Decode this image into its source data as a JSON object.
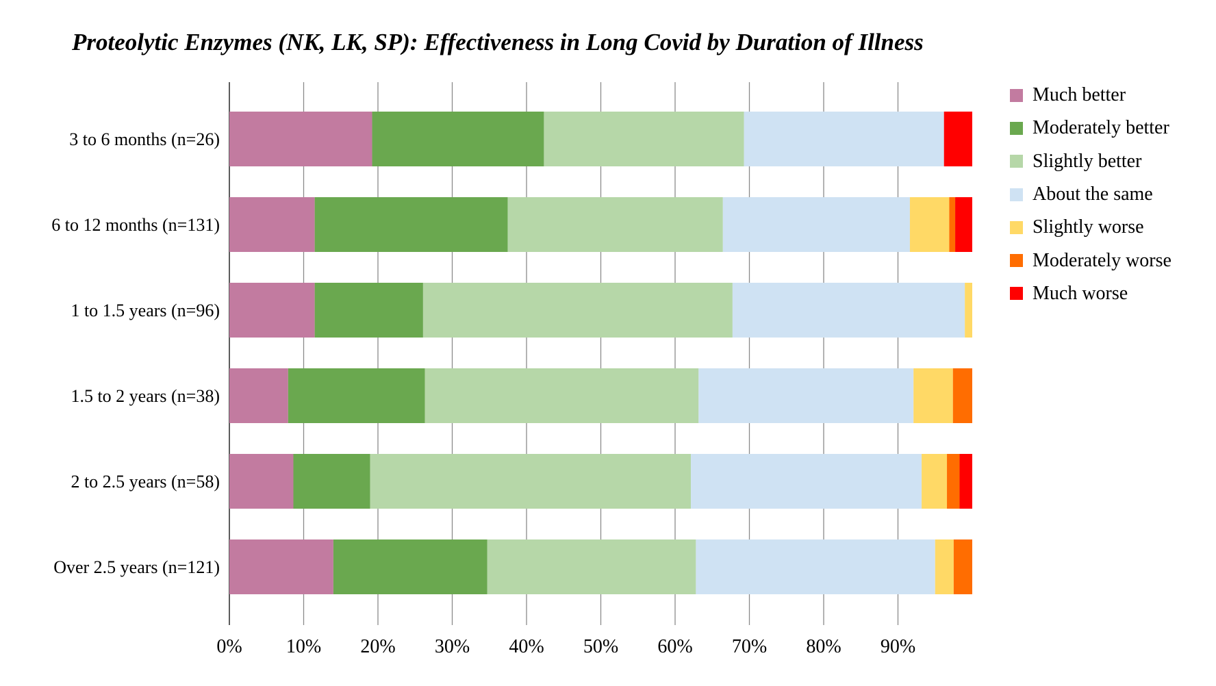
{
  "chart_data": {
    "type": "bar",
    "orientation": "horizontal",
    "stacked": true,
    "percent": true,
    "title": "Proteolytic Enzymes (NK, LK, SP): Effectiveness in Long Covid by Duration of Illness",
    "xlabel": "",
    "ylabel": "",
    "xlim": [
      0,
      100
    ],
    "x_tick_labels": [
      "0%",
      "10%",
      "20%",
      "30%",
      "40%",
      "50%",
      "60%",
      "70%",
      "80%",
      "90%"
    ],
    "grid": "vertical",
    "legend_position": "right",
    "categories": [
      "3 to 6 months (n=26)",
      "6 to 12 months (n=131)",
      "1 to 1.5 years (n=96)",
      "1.5 to 2 years (n=38)",
      "2 to 2.5 years (n=58)",
      "Over 2.5 years (n=121)"
    ],
    "series": [
      {
        "name": "Much better",
        "color": "#c27ba0",
        "values": [
          19.2,
          11.5,
          11.5,
          7.9,
          8.6,
          14.0
        ]
      },
      {
        "name": "Moderately better",
        "color": "#6aa84f",
        "values": [
          23.1,
          26.0,
          14.6,
          18.4,
          10.3,
          20.7
        ]
      },
      {
        "name": "Slightly better",
        "color": "#b6d7a8",
        "values": [
          26.9,
          29.0,
          41.7,
          36.8,
          43.1,
          28.1
        ]
      },
      {
        "name": "About the same",
        "color": "#cfe2f3",
        "values": [
          26.9,
          25.2,
          31.3,
          28.9,
          31.0,
          32.2
        ]
      },
      {
        "name": "Slightly worse",
        "color": "#ffd966",
        "values": [
          0,
          5.3,
          1.0,
          5.3,
          3.4,
          2.5
        ]
      },
      {
        "name": "Moderately worse",
        "color": "#ff6d01",
        "values": [
          0,
          0.8,
          0,
          2.6,
          1.7,
          2.5
        ]
      },
      {
        "name": "Much worse",
        "color": "#ff0000",
        "values": [
          3.8,
          2.3,
          0,
          0,
          1.7,
          0
        ]
      }
    ]
  }
}
